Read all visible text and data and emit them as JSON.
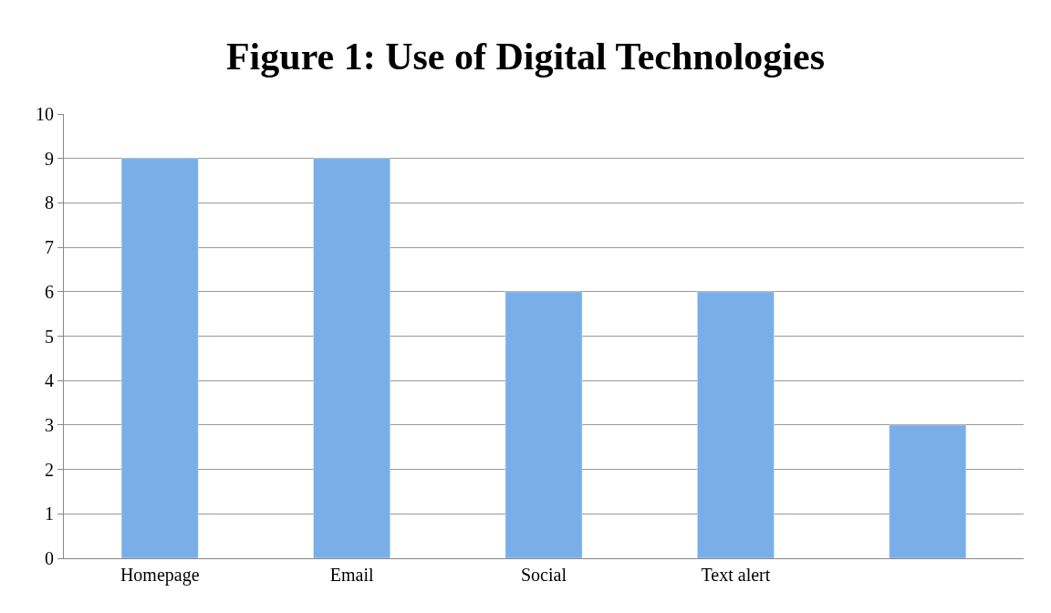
{
  "chart_data": {
    "type": "bar",
    "title": "Figure 1: Use of Digital Technologies",
    "categories": [
      "Homepage",
      "Email",
      "Social",
      "Text alert",
      null
    ],
    "values": [
      9,
      9,
      6,
      6,
      3
    ],
    "color": "#7aaee8",
    "ylim": [
      0,
      10
    ],
    "yticks": [
      0,
      1,
      2,
      3,
      4,
      5,
      6,
      7,
      8,
      9,
      10
    ],
    "grid": "y"
  }
}
